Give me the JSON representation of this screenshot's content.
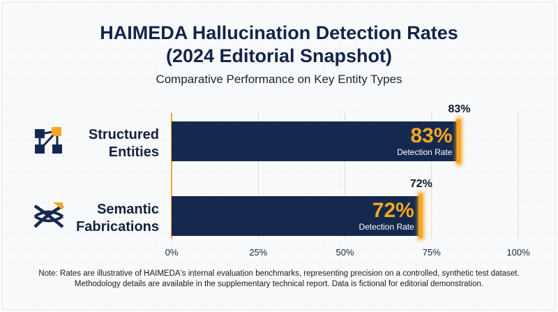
{
  "chart_data": {
    "type": "bar",
    "orientation": "horizontal",
    "title_lines": [
      "HAIMEDA Hallucination Detection Rates",
      "(2024 Editorial Snapshot)"
    ],
    "subtitle": "Comparative Performance on Key Entity Types",
    "categories": [
      {
        "lines": [
          "Structured",
          "Entities"
        ],
        "icon": "network-nodes-icon"
      },
      {
        "lines": [
          "Semantic",
          "Fabrications"
        ],
        "icon": "woven-knot-icon"
      }
    ],
    "values": [
      83,
      72
    ],
    "value_labels": [
      "83%",
      "72%"
    ],
    "bar_inner_label": "Detection Rate",
    "xlim": [
      0,
      100
    ],
    "xticks": [
      "0%",
      "25%",
      "50%",
      "75%",
      "100%"
    ],
    "grid": true,
    "colors": {
      "bar": "#15294f",
      "accent": "#f5a623",
      "accent_text": "#f6a81c"
    }
  },
  "footnote": {
    "lines": [
      "Note: Rates are illustrative of HAIMEDA's internal evaluation benchmarks, representing precision on a controlled, synthetic test dataset.",
      "Methodology details are available in the supplementary technical report. Data is fictional for editorial demonstration."
    ]
  }
}
